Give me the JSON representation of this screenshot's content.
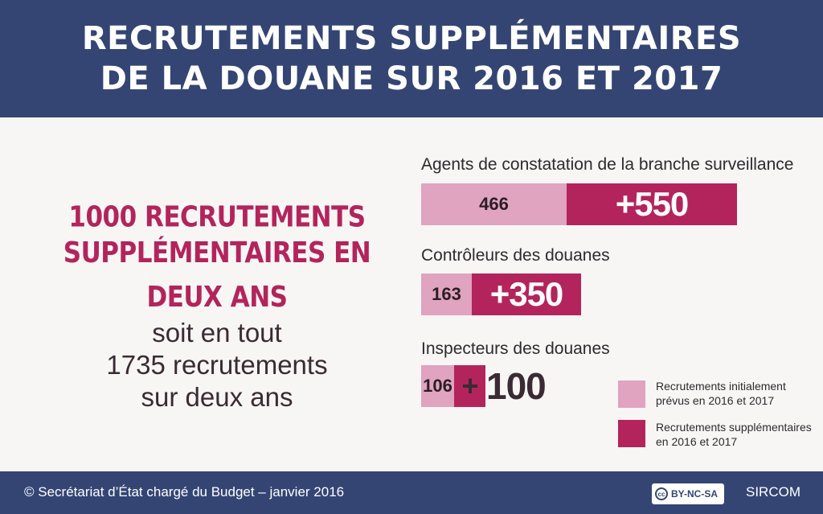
{
  "header": {
    "line1": "RECRUTEMENTS SUPPLÉMENTAIRES",
    "line2": "DE LA DOUANE SUR 2016 ET 2017"
  },
  "summary": {
    "headline1": "1000 RECRUTEMENTS",
    "headline2": "SUPPLÉMENTAIRES EN DEUX ANS",
    "line1": "soit en tout",
    "line2": "1735 recrutements",
    "line3": "sur deux ans"
  },
  "chart_data": {
    "type": "bar",
    "orientation": "horizontal",
    "stacked": true,
    "categories": [
      "Agents de constatation de la branche surveillance",
      "Contrôleurs des douanes",
      "Inspecteurs des douanes"
    ],
    "series": [
      {
        "name": "Recrutements initialement prévus en 2016 et 2017",
        "values": [
          466,
          163,
          106
        ],
        "color": "#e0a3c0"
      },
      {
        "name": "Recrutements supplémentaires en 2016 et 2017",
        "values": [
          550,
          350,
          100
        ],
        "color": "#b3245c"
      }
    ],
    "data_labels": {
      "initial": [
        "466",
        "163",
        "106"
      ],
      "supplementary": [
        "+550",
        "+350",
        "100"
      ],
      "supplementary_plus": "+"
    },
    "legend": "bottom-right"
  },
  "legend": {
    "initial_line1": "Recrutements initialement",
    "initial_line2": "prévus en 2016 et 2017",
    "supp_line1": "Recrutements supplémentaires",
    "supp_line2": "en 2016 et 2017"
  },
  "footer": {
    "copyright": "© Secrétariat d’État chargé du Budget – janvier 2016",
    "cc_icon": "cc",
    "license": "BY-NC-SA",
    "brand": "SIRCOM"
  }
}
